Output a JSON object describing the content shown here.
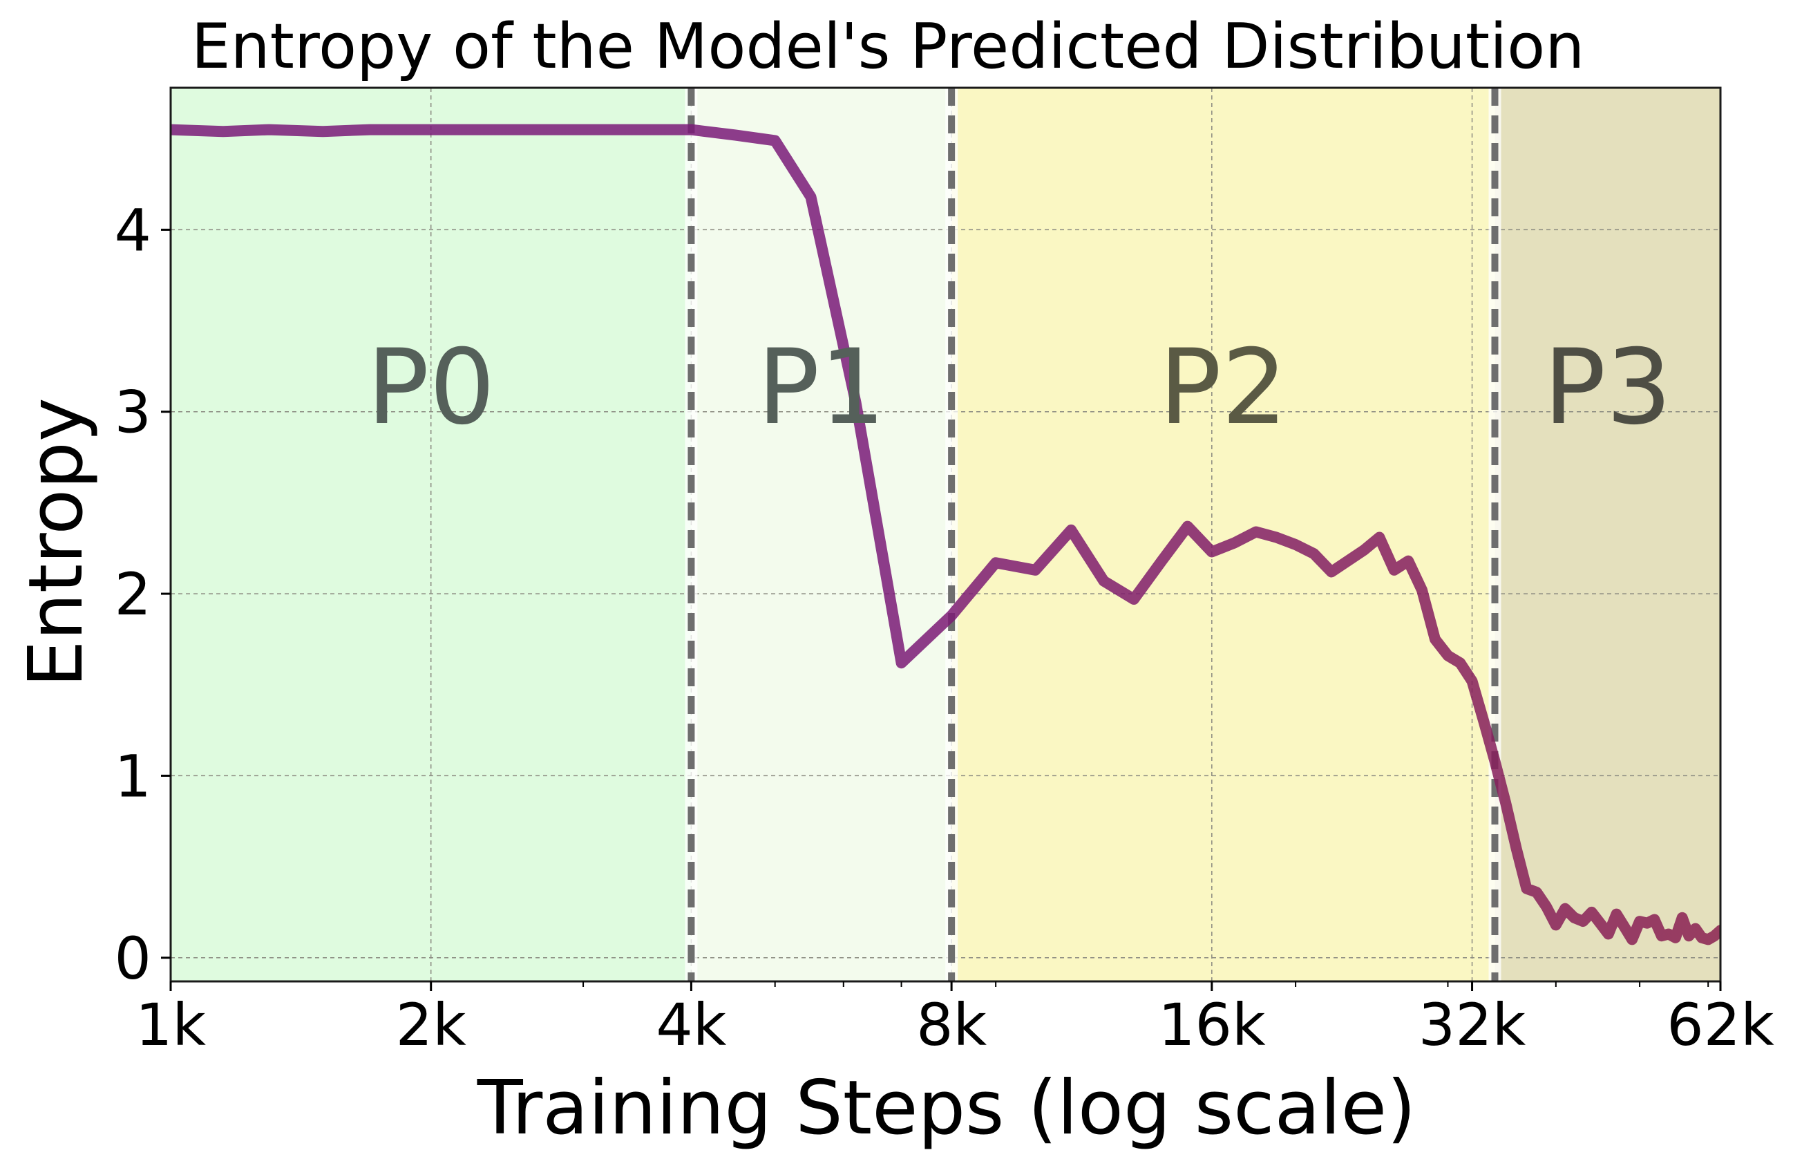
{
  "chart_data": {
    "type": "line",
    "title": "Entropy of the Model's Predicted Distribution",
    "xlabel": "Training Steps (log scale)",
    "ylabel": "Entropy",
    "x_scale": "log",
    "xlim": [
      1000,
      62000
    ],
    "ylim": [
      -0.13,
      4.78
    ],
    "x_ticks": [
      {
        "value": 1000,
        "label": "1k"
      },
      {
        "value": 2000,
        "label": "2k"
      },
      {
        "value": 4000,
        "label": "4k"
      },
      {
        "value": 8000,
        "label": "8k"
      },
      {
        "value": 16000,
        "label": "16k"
      },
      {
        "value": 32000,
        "label": "32k"
      },
      {
        "value": 62000,
        "label": "62k"
      }
    ],
    "y_ticks": [
      {
        "value": 0,
        "label": "0"
      },
      {
        "value": 1,
        "label": "1"
      },
      {
        "value": 2,
        "label": "2"
      },
      {
        "value": 3,
        "label": "3"
      },
      {
        "value": 4,
        "label": "4"
      }
    ],
    "grid": true,
    "phases": [
      {
        "label": "P0",
        "start": 1000,
        "end": 4000,
        "color": "#dffbdf",
        "text_color": "#55605a"
      },
      {
        "label": "P1",
        "start": 4000,
        "end": 8000,
        "color": "#f3fbed",
        "text_color": "#55605a"
      },
      {
        "label": "P2",
        "start": 8000,
        "end": 34000,
        "color": "#faf7c3",
        "text_color": "#5a5a44"
      },
      {
        "label": "P3",
        "start": 34000,
        "end": 62000,
        "color": "#e4e0bd",
        "text_color": "#4e4e44"
      }
    ],
    "phase_boundaries": [
      4000,
      8000,
      34000
    ],
    "series": [
      {
        "color": "#7a1a78",
        "end_color": "#8a2050",
        "x": [
          1000,
          1150,
          1300,
          1500,
          1700,
          2000,
          2500,
          3000,
          3500,
          4000,
          4500,
          5000,
          5500,
          6200,
          7000,
          8000,
          9000,
          10000,
          11000,
          12000,
          13000,
          14000,
          15000,
          16000,
          17000,
          18000,
          19000,
          20000,
          21000,
          22000,
          24000,
          25000,
          26000,
          27000,
          28000,
          29000,
          30000,
          31000,
          32000,
          33000,
          34000,
          35000,
          36000,
          37000,
          38000,
          39000,
          40000,
          41000,
          42000,
          43000,
          44000,
          45000,
          46000,
          47000,
          48000,
          49000,
          50000,
          51000,
          52000,
          53000,
          54000,
          55000,
          56000,
          57000,
          58000,
          59000,
          60000,
          61000,
          62000
        ],
        "y": [
          4.55,
          4.54,
          4.55,
          4.54,
          4.55,
          4.55,
          4.55,
          4.55,
          4.55,
          4.55,
          4.52,
          4.49,
          4.18,
          3.05,
          1.62,
          1.88,
          2.17,
          2.13,
          2.35,
          2.07,
          1.97,
          2.18,
          2.37,
          2.23,
          2.28,
          2.34,
          2.31,
          2.27,
          2.22,
          2.12,
          2.24,
          2.31,
          2.13,
          2.18,
          2.02,
          1.75,
          1.66,
          1.62,
          1.52,
          1.3,
          1.08,
          0.85,
          0.6,
          0.38,
          0.36,
          0.28,
          0.18,
          0.27,
          0.22,
          0.2,
          0.25,
          0.19,
          0.13,
          0.24,
          0.17,
          0.1,
          0.2,
          0.19,
          0.21,
          0.12,
          0.13,
          0.11,
          0.22,
          0.12,
          0.16,
          0.11,
          0.1,
          0.12,
          0.15
        ]
      }
    ]
  }
}
